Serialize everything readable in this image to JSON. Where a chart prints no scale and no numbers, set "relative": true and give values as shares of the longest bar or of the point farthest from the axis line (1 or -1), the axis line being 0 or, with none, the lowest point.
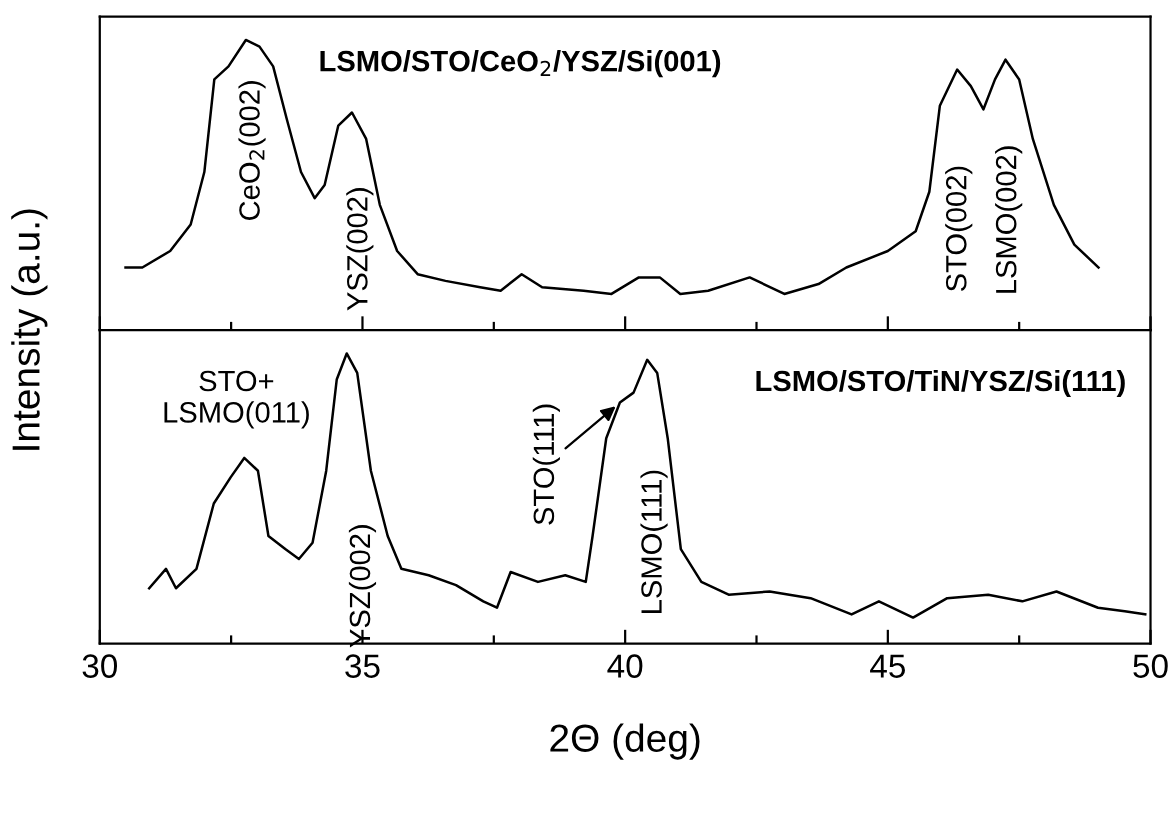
{
  "chart_data": [
    {
      "type": "line",
      "title": "LSMO/STO/CeO$_{2}$/YSZ/Si(001)",
      "ylabel": "Intensity (a.u.)",
      "relative": true,
      "tick_labels": false,
      "xlim": [
        30,
        50
      ],
      "xticks": [
        30,
        {
          "value": 32.5,
          "label": null
        },
        35,
        {
          "value": 37.5,
          "label": null
        },
        40,
        {
          "value": 42.5,
          "label": null
        },
        45,
        {
          "value": 47.5,
          "label": null
        },
        50
      ],
      "series": [
        {
          "color": "#000000",
          "x": [
            30.49,
            30.81,
            31.34,
            31.73,
            31.99,
            32.18,
            32.45,
            32.78,
            33.04,
            33.3,
            33.56,
            33.83,
            34.09,
            34.28,
            34.54,
            34.8,
            35.07,
            35.33,
            35.66,
            36.05,
            36.58,
            37.24,
            37.63,
            38.03,
            38.42,
            39.21,
            39.74,
            40.26,
            40.66,
            41.05,
            41.58,
            42.37,
            43.03,
            43.68,
            44.21,
            45.0,
            45.53,
            45.79,
            45.99,
            46.32,
            46.58,
            46.82,
            47.04,
            47.24,
            47.5,
            47.76,
            48.16,
            48.55,
            49.01
          ],
          "values": [
            0.216,
            0.216,
            0.273,
            0.364,
            0.545,
            0.864,
            0.909,
            1.0,
            0.977,
            0.909,
            0.727,
            0.545,
            0.455,
            0.5,
            0.705,
            0.75,
            0.659,
            0.432,
            0.273,
            0.193,
            0.17,
            0.148,
            0.136,
            0.193,
            0.148,
            0.136,
            0.125,
            0.182,
            0.182,
            0.125,
            0.136,
            0.182,
            0.125,
            0.159,
            0.216,
            0.273,
            0.341,
            0.477,
            0.773,
            0.898,
            0.841,
            0.761,
            0.864,
            0.932,
            0.864,
            0.659,
            0.432,
            0.295,
            0.216
          ]
        }
      ],
      "annotations": [
        "CeO$_{2}$(002)",
        "YSZ(002)",
        "STO(002)",
        "LSMO(002)"
      ]
    },
    {
      "type": "line",
      "title": "LSMO/STO/TiN/YSZ/Si(111)",
      "xlabel": "2Θ (deg)",
      "relative": true,
      "tick_labels": "x",
      "xlim": [
        30,
        50
      ],
      "xticks": [
        30,
        {
          "value": 32.5,
          "label": null
        },
        35,
        {
          "value": 37.5,
          "label": null
        },
        40,
        {
          "value": 42.5,
          "label": null
        },
        45,
        {
          "value": 47.5,
          "label": null
        },
        50
      ],
      "series": [
        {
          "color": "#000000",
          "x": [
            30.94,
            31.26,
            31.45,
            31.84,
            32.17,
            32.49,
            32.75,
            33.01,
            33.21,
            33.53,
            33.79,
            34.05,
            34.31,
            34.51,
            34.7,
            34.9,
            35.16,
            35.48,
            35.74,
            36.26,
            36.78,
            37.3,
            37.56,
            37.82,
            38.34,
            38.86,
            39.25,
            39.38,
            39.64,
            39.9,
            40.16,
            40.42,
            40.61,
            40.81,
            41.06,
            41.45,
            41.97,
            42.75,
            43.53,
            44.31,
            44.83,
            45.48,
            46.13,
            46.91,
            47.56,
            48.21,
            49.0,
            49.51,
            49.9
          ],
          "values": [
            0.191,
            0.258,
            0.191,
            0.258,
            0.483,
            0.573,
            0.64,
            0.596,
            0.371,
            0.326,
            0.292,
            0.348,
            0.596,
            0.91,
            1.0,
            0.933,
            0.596,
            0.371,
            0.258,
            0.236,
            0.202,
            0.146,
            0.124,
            0.247,
            0.213,
            0.236,
            0.213,
            0.371,
            0.708,
            0.831,
            0.865,
            0.978,
            0.933,
            0.708,
            0.326,
            0.213,
            0.169,
            0.18,
            0.157,
            0.101,
            0.146,
            0.09,
            0.157,
            0.169,
            0.146,
            0.18,
            0.124,
            0.112,
            0.101
          ]
        }
      ],
      "annotations": [
        "STO+\nLSMO(011)",
        "YSZ(002)",
        {
          "text": "STO(111)",
          "x": 39.9,
          "y": 0.83
        },
        "LSMO(111)"
      ]
    }
  ]
}
